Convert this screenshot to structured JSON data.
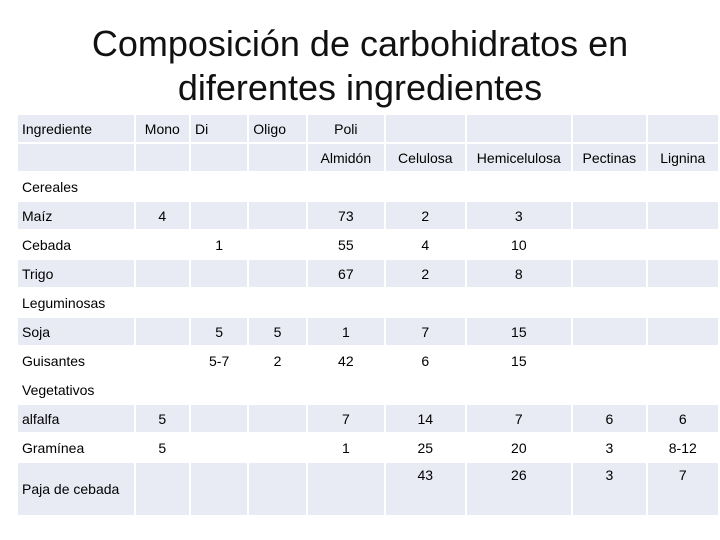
{
  "title_line1": "Composición de carbohidratos en",
  "title_line2": "diferentes ingredientes",
  "header": {
    "ingrediente": "Ingrediente",
    "mono": "Mono",
    "di": "Di",
    "oligo": "Oligo",
    "poli": "Poli",
    "almidon": "Almidón",
    "celulosa": "Celulosa",
    "hemicelulosa": "Hemicelulosa",
    "pectinas": "Pectinas",
    "lignina": "Lignina"
  },
  "sections": {
    "cereales": "Cereales",
    "leguminosas": "Leguminosas",
    "vegetativos": "Vegetativos"
  },
  "rows": {
    "maiz": {
      "name": "Maíz",
      "mono": "4",
      "di": "",
      "oligo": "",
      "almidon": "73",
      "celulosa": "2",
      "hemicelulosa": "3",
      "pectinas": "",
      "lignina": ""
    },
    "cebada": {
      "name": "Cebada",
      "mono": "",
      "di": "1",
      "oligo": "",
      "almidon": "55",
      "celulosa": "4",
      "hemicelulosa": "10",
      "pectinas": "",
      "lignina": ""
    },
    "trigo": {
      "name": "Trigo",
      "mono": "",
      "di": "",
      "oligo": "",
      "almidon": "67",
      "celulosa": "2",
      "hemicelulosa": "8",
      "pectinas": "",
      "lignina": ""
    },
    "soja": {
      "name": "Soja",
      "mono": "",
      "di": "5",
      "oligo": "5",
      "almidon": "1",
      "celulosa": "7",
      "hemicelulosa": "15",
      "pectinas": "",
      "lignina": ""
    },
    "guisantes": {
      "name": "Guisantes",
      "mono": "",
      "di": "5-7",
      "oligo": "2",
      "almidon": "42",
      "celulosa": "6",
      "hemicelulosa": "15",
      "pectinas": "",
      "lignina": ""
    },
    "alfalfa": {
      "name": "alfalfa",
      "mono": "5",
      "di": "",
      "oligo": "",
      "almidon": "7",
      "celulosa": "14",
      "hemicelulosa": "7",
      "pectinas": "6",
      "lignina": "6"
    },
    "graminea": {
      "name": "Gramínea",
      "mono": "5",
      "di": "",
      "oligo": "",
      "almidon": "1",
      "celulosa": "25",
      "hemicelulosa": "20",
      "pectinas": "3",
      "lignina": "8-12"
    },
    "paja": {
      "name": "Paja de cebada",
      "mono": "",
      "di": "",
      "oligo": "",
      "almidon": "",
      "celulosa": "43",
      "hemicelulosa": "26",
      "pectinas": "3",
      "lignina": "7"
    }
  }
}
